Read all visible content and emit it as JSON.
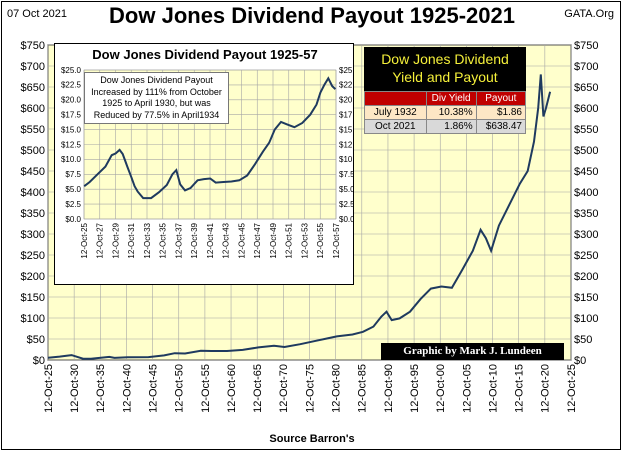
{
  "header": {
    "date": "07 Oct 2021",
    "title": "Dow Jones Dividend Payout 1925-2021",
    "source": "GATA.Org"
  },
  "footer": {
    "xlabel": "Source Barron's",
    "credit": "Graphic by Mark J. Lundeen"
  },
  "colors": {
    "line": "#1f3a5f",
    "plot_bg": "#ffffcc",
    "grid": "#a6a6a6",
    "table_header": "#c00000",
    "table_row1": "#fde7c5",
    "table_row2": "#d9d9d9",
    "panel_title_bg": "#000000",
    "panel_title_text": "#f5f03a"
  },
  "inset": {
    "title": "Dow Jones Dividend Payout 1925-57",
    "note": "Dow Jones Dividend Payout Increased by  111% from October 1925 to April 1930, but was Reduced by 77.5% in April1934"
  },
  "yield_panel": {
    "title_line1": "Dow Jones Dividend",
    "title_line2": "Yield and Payout",
    "headers": [
      "",
      "Div Yield",
      "Payout"
    ],
    "rows": [
      {
        "label": "July 1932",
        "yield": "10.38%",
        "payout": "$1.86"
      },
      {
        "label": "Oct 2021",
        "yield": "1.86%",
        "payout": "$638.47"
      }
    ]
  },
  "chart_data": [
    {
      "type": "line",
      "title": "Dow Jones Dividend Payout 1925-2021",
      "xlabel": "Source Barron's",
      "ylabel": "",
      "ylim": [
        0,
        750
      ],
      "xlim": [
        1925.78,
        2025.78
      ],
      "yticks": [
        "$0",
        "$50",
        "$100",
        "$150",
        "$200",
        "$250",
        "$300",
        "$350",
        "$400",
        "$450",
        "$500",
        "$550",
        "$600",
        "$650",
        "$700",
        "$750"
      ],
      "xticks": [
        "12-Oct-25",
        "12-Oct-30",
        "12-Oct-35",
        "12-Oct-40",
        "12-Oct-45",
        "12-Oct-50",
        "12-Oct-55",
        "12-Oct-60",
        "12-Oct-65",
        "12-Oct-70",
        "12-Oct-75",
        "12-Oct-80",
        "12-Oct-85",
        "12-Oct-90",
        "12-Oct-95",
        "12-Oct-00",
        "12-Oct-05",
        "12-Oct-10",
        "12-Oct-15",
        "12-Oct-20",
        "12-Oct-25"
      ],
      "grid": true,
      "series": [
        {
          "x": [
            1925.8,
            1928,
            1929.5,
            1930.3,
            1932.5,
            1934,
            1937.5,
            1938.5,
            1941,
            1945,
            1948,
            1950,
            1952,
            1955,
            1957,
            1960,
            1963,
            1966,
            1969,
            1971,
            1974,
            1977,
            1979,
            1981,
            1984,
            1986,
            1988,
            1989.5,
            1990.5,
            1991.5,
            1993,
            1995,
            1997,
            1999,
            2001,
            2003,
            2005,
            2007,
            2008.5,
            2009.5,
            2010.5,
            2012,
            2014,
            2016,
            2017.5,
            2018.7,
            2019.5,
            2020,
            2020.5,
            2021,
            2021.78
          ],
          "y": [
            5.5,
            8,
            10.5,
            11.7,
            3,
            3.2,
            7.5,
            5,
            6.5,
            6.8,
            11,
            16.3,
            15.4,
            22,
            21.5,
            21.4,
            24,
            30,
            33.9,
            31,
            37.7,
            45.8,
            50.9,
            56.2,
            60.6,
            67.2,
            79.5,
            103,
            115,
            95,
            99,
            115,
            145,
            170,
            175,
            172,
            215,
            260,
            310,
            290,
            260,
            320,
            370,
            420,
            450,
            520,
            600,
            680,
            580,
            600,
            638.47
          ]
        }
      ]
    },
    {
      "type": "line",
      "title": "Dow Jones Dividend Payout 1925-57",
      "ylim": [
        0,
        25
      ],
      "xlim": [
        1925.78,
        1957.78
      ],
      "yticks": [
        "$0.0",
        "$2.5",
        "$5.0",
        "$7.5",
        "$10.0",
        "$12.5",
        "$15.0",
        "$17.5",
        "$20.0",
        "$22.5",
        "$25.0"
      ],
      "xticks": [
        "12-Oct-25",
        "12-Oct-27",
        "12-Oct-29",
        "12-Oct-31",
        "12-Oct-33",
        "12-Oct-35",
        "12-Oct-37",
        "12-Oct-39",
        "12-Oct-41",
        "12-Oct-43",
        "12-Oct-45",
        "12-Oct-47",
        "12-Oct-49",
        "12-Oct-51",
        "12-Oct-53",
        "12-Oct-55",
        "12-Oct-57"
      ],
      "grid": true,
      "series": [
        {
          "x": [
            1925.8,
            1926.5,
            1927.5,
            1928.5,
            1929.3,
            1929.8,
            1930.3,
            1930.7,
            1931.3,
            1931.8,
            1932.2,
            1932.6,
            1933.3,
            1934.3,
            1935.3,
            1936.3,
            1937,
            1937.5,
            1938,
            1938.6,
            1939.3,
            1940.2,
            1941,
            1941.8,
            1942.5,
            1943.5,
            1944.5,
            1945.5,
            1946.5,
            1947.5,
            1948.5,
            1949.3,
            1950,
            1950.8,
            1951.5,
            1952.5,
            1953.5,
            1954.5,
            1955.3,
            1955.8,
            1956.3,
            1956.8,
            1957.3,
            1957.7
          ],
          "y": [
            5.5,
            6.2,
            7.5,
            8.8,
            10.7,
            11,
            11.6,
            10.9,
            8.7,
            7,
            5.5,
            4.6,
            3.5,
            3.5,
            4.5,
            5.7,
            7.5,
            8.2,
            5.8,
            4.8,
            5.2,
            6.5,
            6.7,
            6.8,
            6.1,
            6.2,
            6.3,
            6.5,
            7.3,
            9.2,
            11.3,
            12.8,
            15,
            16.3,
            15.9,
            15.4,
            16.1,
            17.5,
            19.2,
            21.2,
            22.5,
            23.6,
            22.3,
            21.8
          ]
        }
      ]
    }
  ]
}
